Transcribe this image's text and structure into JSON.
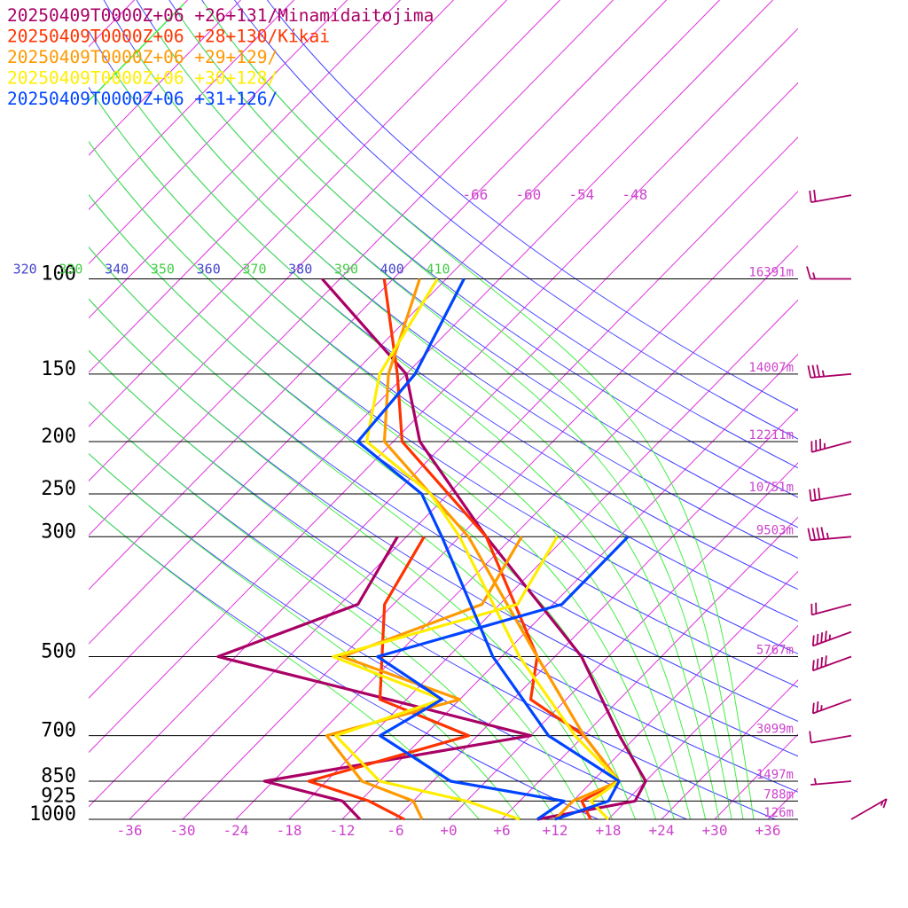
{
  "chart_data": {
    "type": "line",
    "legend_placement": "top-left",
    "series": [
      {
        "name": "20250409T0000Z+06 +26+131/Minamidaitojima",
        "color": "#aa0066",
        "temperature": [
          [
            1000,
            10
          ],
          [
            925,
            19
          ],
          [
            850,
            18
          ],
          [
            700,
            10
          ],
          [
            500,
            -3
          ],
          [
            300,
            -27
          ],
          [
            200,
            -45
          ],
          [
            150,
            -54
          ],
          [
            100,
            -74
          ]
        ],
        "dewpoint": [
          [
            1000,
            -10
          ],
          [
            925,
            -14
          ],
          [
            850,
            -25
          ],
          [
            700,
            0
          ],
          [
            600,
            -20
          ],
          [
            500,
            -44
          ],
          [
            400,
            -34
          ],
          [
            300,
            -37
          ]
        ]
      },
      {
        "name": "20250409T0000Z+06 +28+130/Kikai",
        "color": "#ff3300",
        "temperature": [
          [
            1000,
            16
          ],
          [
            925,
            13
          ],
          [
            850,
            15
          ],
          [
            700,
            6
          ],
          [
            600,
            -4
          ],
          [
            500,
            -8
          ],
          [
            300,
            -27
          ],
          [
            200,
            -47
          ],
          [
            150,
            -55
          ],
          [
            100,
            -67
          ]
        ],
        "dewpoint": [
          [
            1000,
            -5
          ],
          [
            925,
            -11
          ],
          [
            850,
            -20
          ],
          [
            700,
            -7
          ],
          [
            600,
            -21
          ],
          [
            400,
            -31
          ],
          [
            300,
            -34
          ]
        ]
      },
      {
        "name": "20250409T0000Z+06 +29+129/",
        "color": "#ff9900",
        "temperature": [
          [
            1000,
            12
          ],
          [
            925,
            12
          ],
          [
            850,
            15
          ],
          [
            700,
            6
          ],
          [
            500,
            -8
          ],
          [
            300,
            -29
          ],
          [
            250,
            -38
          ],
          [
            200,
            -49
          ],
          [
            150,
            -56
          ],
          [
            100,
            -63
          ]
        ],
        "dewpoint": [
          [
            1000,
            -3
          ],
          [
            925,
            -6
          ],
          [
            850,
            -14
          ],
          [
            700,
            -23
          ],
          [
            600,
            -12
          ],
          [
            500,
            -30
          ],
          [
            400,
            -20
          ],
          [
            300,
            -23
          ]
        ]
      },
      {
        "name": "20250409T0000Z+06 +30+128/",
        "color": "#ffee00",
        "temperature": [
          [
            1000,
            18
          ],
          [
            925,
            14
          ],
          [
            850,
            15
          ],
          [
            700,
            5
          ],
          [
            500,
            -10
          ],
          [
            300,
            -30
          ],
          [
            250,
            -38
          ],
          [
            200,
            -51
          ],
          [
            150,
            -57
          ],
          [
            100,
            -61
          ]
        ],
        "dewpoint": [
          [
            1000,
            8
          ],
          [
            925,
            0
          ],
          [
            850,
            -12
          ],
          [
            700,
            -22
          ],
          [
            600,
            -14
          ],
          [
            500,
            -31
          ],
          [
            400,
            -16
          ],
          [
            300,
            -19
          ]
        ]
      },
      {
        "name": "20250409T0000Z+06 +31+126/",
        "color": "#0044ff",
        "temperature": [
          [
            1000,
            12
          ],
          [
            925,
            16
          ],
          [
            850,
            15
          ],
          [
            700,
            2
          ],
          [
            500,
            -13
          ],
          [
            300,
            -32
          ],
          [
            250,
            -39
          ],
          [
            200,
            -52
          ],
          [
            150,
            -53
          ],
          [
            100,
            -58
          ]
        ],
        "dewpoint": [
          [
            1000,
            10
          ],
          [
            925,
            11
          ],
          [
            850,
            -4
          ],
          [
            700,
            -17
          ],
          [
            600,
            -14
          ],
          [
            500,
            -26
          ],
          [
            400,
            -11
          ],
          [
            300,
            -11
          ]
        ]
      }
    ],
    "pressure_levels": [
      {
        "label": "100",
        "p": 100,
        "height": "16391m"
      },
      {
        "label": "150",
        "p": 150,
        "height": "14007m"
      },
      {
        "label": "200",
        "p": 200,
        "height": "12211m"
      },
      {
        "label": "250",
        "p": 250,
        "height": "10751m"
      },
      {
        "label": "300",
        "p": 300,
        "height": "9503m"
      },
      {
        "label": "500",
        "p": 500,
        "height": "5767m"
      },
      {
        "label": "700",
        "p": 700,
        "height": "3099m"
      },
      {
        "label": "850",
        "p": 850,
        "height": "1497m"
      },
      {
        "label": "925",
        "p": 925,
        "height": "788m"
      },
      {
        "label": "1000",
        "p": 1000,
        "height": "126m"
      }
    ],
    "x_ticks": [
      {
        "label": "-36",
        "t": -36
      },
      {
        "label": "-30",
        "t": -30
      },
      {
        "label": "-24",
        "t": -24
      },
      {
        "label": "-18",
        "t": -18
      },
      {
        "label": "-12",
        "t": -12
      },
      {
        "label": "-6",
        "t": -6
      },
      {
        "label": "+0",
        "t": 0
      },
      {
        "label": "+6",
        "t": 6
      },
      {
        "label": "+12",
        "t": 12
      },
      {
        "label": "+18",
        "t": 18
      },
      {
        "label": "+24",
        "t": 24
      },
      {
        "label": "+30",
        "t": 30
      },
      {
        "label": "+36",
        "t": 36
      }
    ],
    "xlim": [
      -40,
      40
    ],
    "ylim": [
      1000,
      100
    ],
    "upper_isotherm_labels": [
      {
        "label": "-66",
        "t": -66
      },
      {
        "label": "-60",
        "t": -60
      },
      {
        "label": "-54",
        "t": -54
      },
      {
        "label": "-48",
        "t": -48
      }
    ],
    "theta_labels": [
      {
        "label": "320",
        "theta": 320
      },
      {
        "label": "330",
        "theta": 330
      },
      {
        "label": "340",
        "theta": 340
      },
      {
        "label": "350",
        "theta": 350
      },
      {
        "label": "360",
        "theta": 360
      },
      {
        "label": "370",
        "theta": 370
      },
      {
        "label": "380",
        "theta": 380
      },
      {
        "label": "390",
        "theta": 390
      },
      {
        "label": "400",
        "theta": 400
      },
      {
        "label": "410",
        "theta": 410
      }
    ],
    "isotherm_step": 6,
    "theta_range": [
      290,
      440,
      10
    ],
    "theta_e_range": [
      290,
      420,
      10
    ],
    "wind_barbs": [
      {
        "p": 70,
        "direction": 260,
        "speed": 20
      },
      {
        "p": 100,
        "direction": 270,
        "speed": 15
      },
      {
        "p": 150,
        "direction": 265,
        "speed": 35
      },
      {
        "p": 200,
        "direction": 255,
        "speed": 35
      },
      {
        "p": 250,
        "direction": 260,
        "speed": 30
      },
      {
        "p": 300,
        "direction": 265,
        "speed": 45
      },
      {
        "p": 400,
        "direction": 255,
        "speed": 20
      },
      {
        "p": 450,
        "direction": 250,
        "speed": 45
      },
      {
        "p": 500,
        "direction": 250,
        "speed": 40
      },
      {
        "p": 600,
        "direction": 250,
        "speed": 25
      },
      {
        "p": 700,
        "direction": 260,
        "speed": 10
      },
      {
        "p": 850,
        "direction": 265,
        "speed": 5
      },
      {
        "p": 1000,
        "direction": 60,
        "speed": 15
      }
    ],
    "colors": {
      "isotherm": "#dd33dd",
      "dry_adiabat": "#4444ff",
      "moist_adiabat": "#44ee44",
      "isobar": "#000000",
      "label_pink": "#cc44cc",
      "label_blue": "#4444cc",
      "label_green": "#44cc44",
      "barb": "#aa0066"
    }
  }
}
